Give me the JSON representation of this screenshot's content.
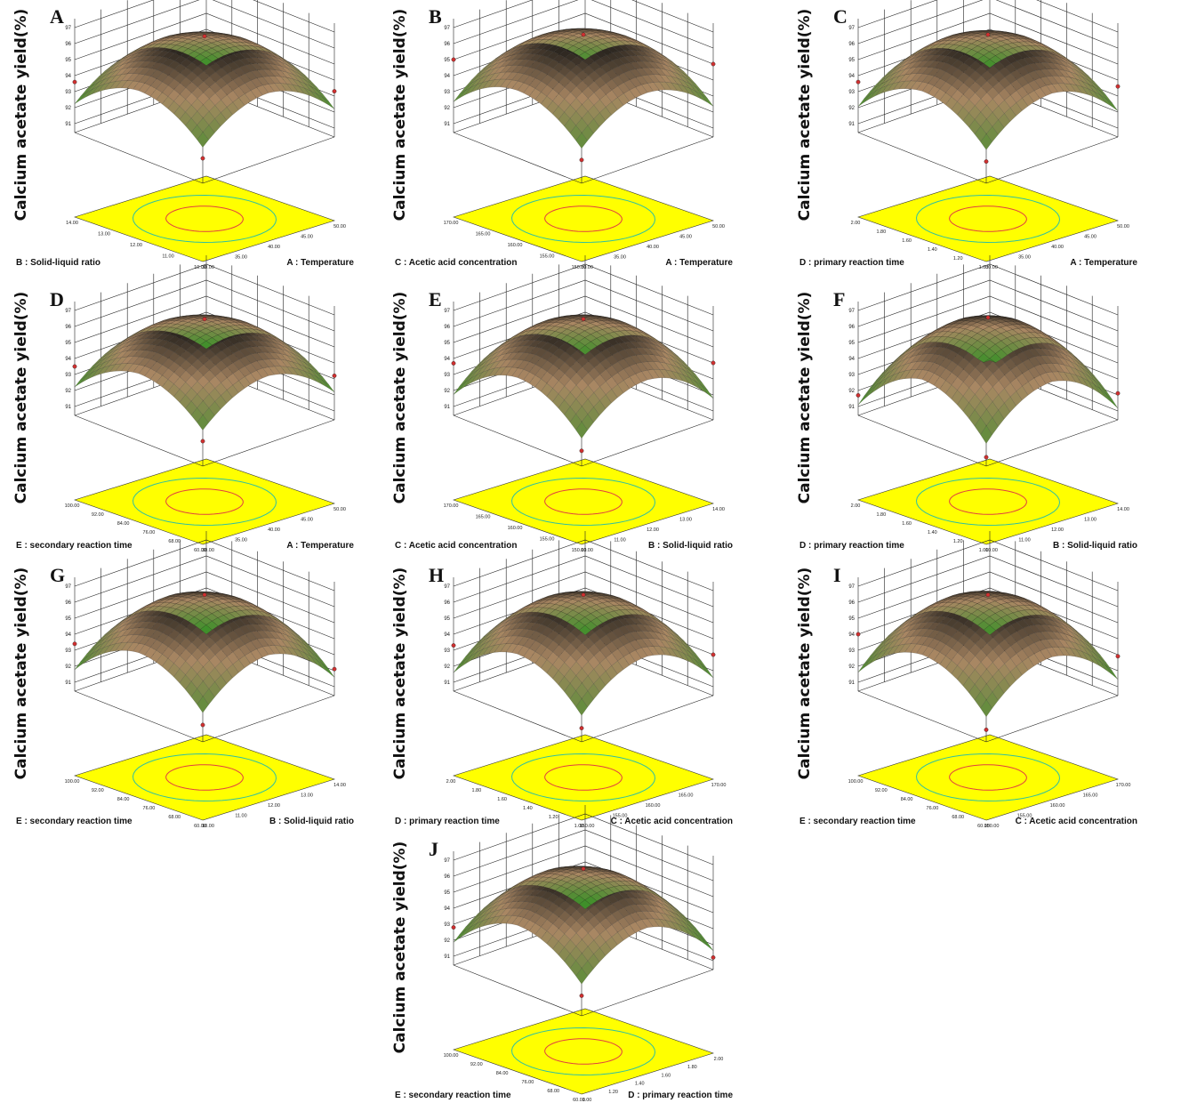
{
  "figure": {
    "z_axis_label": "Calcium acetate yield(%)",
    "z_ticks": [
      "91",
      "92",
      "93",
      "94",
      "95",
      "96",
      "97"
    ]
  },
  "chart_data": [
    {
      "type": "surface3d",
      "panel": "A",
      "zlabel": "Calcium acetate yield(%)",
      "xlabel": "B : Solid-liquid ratio",
      "ylabel": "A : Temperature",
      "x_ticks": [
        "10.00",
        "11.00",
        "12.00",
        "13.00",
        "14.00"
      ],
      "y_ticks": [
        "30.00",
        "35.00",
        "40.00",
        "45.00",
        "50.00"
      ],
      "zlim": [
        91,
        97
      ],
      "peak_z": 96.6,
      "front_z": 92.0,
      "left_z": 93.6,
      "right_z": 93.3
    },
    {
      "type": "surface3d",
      "panel": "B",
      "zlabel": "Calcium acetate yield(%)",
      "xlabel": "C : Acetic acid concentration",
      "ylabel": "A : Temperature",
      "x_ticks": [
        "150.00",
        "155.00",
        "160.00",
        "165.00",
        "170.00"
      ],
      "y_ticks": [
        "30.00",
        "35.00",
        "40.00",
        "45.00",
        "50.00"
      ],
      "zlim": [
        91,
        97
      ],
      "peak_z": 96.7,
      "front_z": 91.9,
      "left_z": 95.0,
      "right_z": 95.0
    },
    {
      "type": "surface3d",
      "panel": "C",
      "zlabel": "Calcium acetate yield(%)",
      "xlabel": "D : primary reaction time",
      "ylabel": "A : Temperature",
      "x_ticks": [
        "1.00",
        "1.20",
        "1.40",
        "1.60",
        "1.80",
        "2.00"
      ],
      "y_ticks": [
        "30.00",
        "35.00",
        "40.00",
        "45.00",
        "50.00"
      ],
      "zlim": [
        91,
        97
      ],
      "peak_z": 96.7,
      "front_z": 91.8,
      "left_z": 93.6,
      "right_z": 93.6
    },
    {
      "type": "surface3d",
      "panel": "D",
      "zlabel": "Calcium acetate yield(%)",
      "xlabel": "E : secondary reaction time",
      "ylabel": "A : Temperature",
      "x_ticks": [
        "60.00",
        "68.00",
        "76.00",
        "84.00",
        "92.00",
        "100.00"
      ],
      "y_ticks": [
        "30.00",
        "35.00",
        "40.00",
        "45.00",
        "50.00"
      ],
      "zlim": [
        91,
        97
      ],
      "peak_z": 96.6,
      "front_z": 92.0,
      "left_z": 93.5,
      "right_z": 93.2
    },
    {
      "type": "surface3d",
      "panel": "E",
      "zlabel": "Calcium acetate yield(%)",
      "xlabel": "C : Acetic acid concentration",
      "ylabel": "B : Solid-liquid ratio",
      "x_ticks": [
        "150.00",
        "155.00",
        "160.00",
        "165.00",
        "170.00"
      ],
      "y_ticks": [
        "10.00",
        "11.00",
        "12.00",
        "13.00",
        "14.00"
      ],
      "zlim": [
        91,
        97
      ],
      "peak_z": 96.6,
      "front_z": 91.4,
      "left_z": 93.7,
      "right_z": 94.0
    },
    {
      "type": "surface3d",
      "panel": "F",
      "zlabel": "Calcium acetate yield(%)",
      "xlabel": "D : primary reaction time",
      "ylabel": "B : Solid-liquid ratio",
      "x_ticks": [
        "1.00",
        "1.20",
        "1.40",
        "1.60",
        "1.80",
        "2.00"
      ],
      "y_ticks": [
        "10.00",
        "11.00",
        "12.00",
        "13.00",
        "14.00"
      ],
      "zlim": [
        91,
        97
      ],
      "peak_z": 96.7,
      "front_z": 91.0,
      "left_z": 91.7,
      "right_z": 92.1
    },
    {
      "type": "surface3d",
      "panel": "G",
      "zlabel": "Calcium acetate yield(%)",
      "xlabel": "E : secondary reaction time",
      "ylabel": "B : Solid-liquid ratio",
      "x_ticks": [
        "60.00",
        "68.00",
        "76.00",
        "84.00",
        "92.00",
        "100.00"
      ],
      "y_ticks": [
        "10.00",
        "11.00",
        "12.00",
        "13.00",
        "14.00"
      ],
      "zlim": [
        91,
        97
      ],
      "peak_z": 96.6,
      "front_z": 91.5,
      "left_z": 93.4,
      "right_z": 92.1
    },
    {
      "type": "surface3d",
      "panel": "H",
      "zlabel": "Calcium acetate yield(%)",
      "xlabel": "D : primary reaction time",
      "ylabel": "C : Acetic acid concentration",
      "x_ticks": [
        "1.00",
        "1.20",
        "1.40",
        "1.60",
        "1.80",
        "2.00"
      ],
      "y_ticks": [
        "150.00",
        "155.00",
        "160.00",
        "165.00",
        "170.00"
      ],
      "zlim": [
        91,
        97
      ],
      "peak_z": 96.6,
      "front_z": 91.3,
      "left_z": 93.3,
      "right_z": 93.0
    },
    {
      "type": "surface3d",
      "panel": "I",
      "zlabel": "Calcium acetate yield(%)",
      "xlabel": "E : secondary reaction time",
      "ylabel": "C : Acetic acid concentration",
      "x_ticks": [
        "60.00",
        "68.00",
        "76.00",
        "84.00",
        "92.00",
        "100.00"
      ],
      "y_ticks": [
        "150.00",
        "155.00",
        "160.00",
        "165.00",
        "170.00"
      ],
      "zlim": [
        91,
        97
      ],
      "peak_z": 96.6,
      "front_z": 91.2,
      "left_z": 94.0,
      "right_z": 92.9
    },
    {
      "type": "surface3d",
      "panel": "J",
      "zlabel": "Calcium acetate yield(%)",
      "xlabel": "E : secondary reaction time",
      "ylabel": "D : primary reaction time",
      "x_ticks": [
        "60.00",
        "68.00",
        "76.00",
        "84.00",
        "92.00",
        "100.00"
      ],
      "y_ticks": [
        "1.00",
        "1.20",
        "1.40",
        "1.60",
        "1.80",
        "2.00"
      ],
      "zlim": [
        91,
        97
      ],
      "peak_z": 96.6,
      "front_z": 91.7,
      "left_z": 92.8,
      "right_z": 91.2
    }
  ],
  "colors": {
    "contour_plane": "#ffff00",
    "contour_inner": "#e04040",
    "contour_outer": "#30c0a0",
    "surface_low": "#3f8f2a",
    "surface_mid": "#a98763",
    "surface_high": "#111111",
    "marker": "#d03030"
  }
}
